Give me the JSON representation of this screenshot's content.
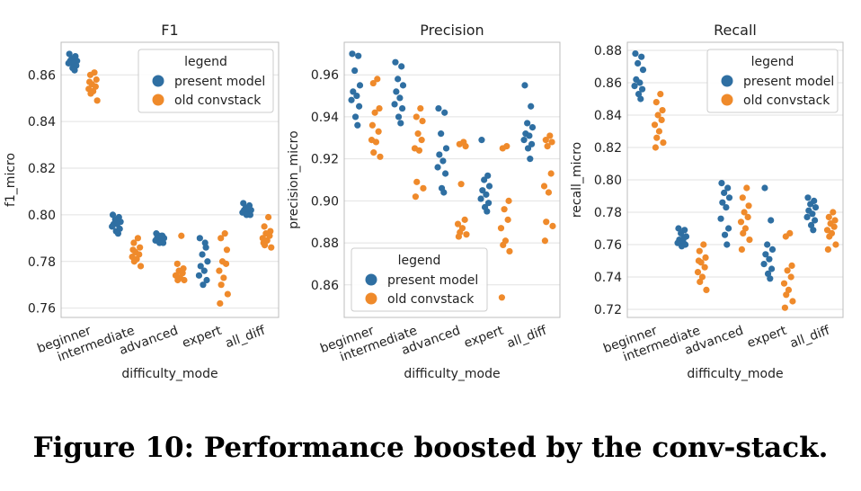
{
  "figure_caption": "Figure 10: Performance boosted by the conv-stack.",
  "colors": {
    "present": "#2f6fa2",
    "old": "#ef8a2b",
    "grid": "#e2e2e2",
    "axis": "#bcbcbc"
  },
  "chart_data": [
    {
      "type": "scatter",
      "title": "F1",
      "xlabel": "difficulty_mode",
      "ylabel": "f1_micro",
      "categories": [
        "beginner",
        "intermediate",
        "advanced",
        "expert",
        "all_diff"
      ],
      "ylim": [
        0.756,
        0.874
      ],
      "yticks": [
        0.76,
        0.78,
        0.8,
        0.82,
        0.84,
        0.86
      ],
      "ytick_labels": [
        "0.76",
        "0.78",
        "0.80",
        "0.82",
        "0.84",
        "0.86"
      ],
      "legend": {
        "title": "legend",
        "entries": [
          "present model",
          "old convstack"
        ],
        "placement": "top-right"
      },
      "series": [
        {
          "name": "present model",
          "color": "#2f6fa2",
          "values": [
            [
              0.869,
              0.868,
              0.867,
              0.866,
              0.866,
              0.865,
              0.865,
              0.864,
              0.863,
              0.862
            ],
            [
              0.8,
              0.799,
              0.798,
              0.797,
              0.796,
              0.796,
              0.795,
              0.794,
              0.793,
              0.792
            ],
            [
              0.792,
              0.791,
              0.791,
              0.79,
              0.79,
              0.789,
              0.789,
              0.788,
              0.788,
              0.791
            ],
            [
              0.79,
              0.786,
              0.783,
              0.78,
              0.778,
              0.776,
              0.774,
              0.772,
              0.77,
              0.788
            ],
            [
              0.805,
              0.804,
              0.803,
              0.802,
              0.802,
              0.801,
              0.801,
              0.8,
              0.8,
              0.803
            ]
          ]
        },
        {
          "name": "old convstack",
          "color": "#ef8a2b",
          "values": [
            [
              0.861,
              0.86,
              0.858,
              0.856,
              0.855,
              0.854,
              0.853,
              0.852,
              0.849,
              0.857
            ],
            [
              0.79,
              0.788,
              0.786,
              0.784,
              0.783,
              0.782,
              0.781,
              0.78,
              0.778,
              0.785
            ],
            [
              0.791,
              0.779,
              0.777,
              0.776,
              0.775,
              0.774,
              0.773,
              0.772,
              0.772,
              0.774
            ],
            [
              0.792,
              0.79,
              0.785,
              0.78,
              0.779,
              0.776,
              0.773,
              0.77,
              0.766,
              0.762
            ],
            [
              0.799,
              0.795,
              0.793,
              0.792,
              0.791,
              0.79,
              0.789,
              0.787,
              0.786,
              0.788
            ]
          ]
        }
      ]
    },
    {
      "type": "scatter",
      "title": "Precision",
      "xlabel": "difficulty_mode",
      "ylabel": "precision_micro",
      "categories": [
        "beginner",
        "intermediate",
        "advanced",
        "expert",
        "all_diff"
      ],
      "ylim": [
        0.8445,
        0.9755
      ],
      "yticks": [
        0.86,
        0.88,
        0.9,
        0.92,
        0.94,
        0.96
      ],
      "ytick_labels": [
        "0.86",
        "0.88",
        "0.90",
        "0.92",
        "0.94",
        "0.96"
      ],
      "legend": {
        "title": "legend",
        "entries": [
          "present model",
          "old convstack"
        ],
        "placement": "bottom-left"
      },
      "series": [
        {
          "name": "present model",
          "color": "#2f6fa2",
          "values": [
            [
              0.97,
              0.969,
              0.962,
              0.955,
              0.952,
              0.95,
              0.948,
              0.945,
              0.94,
              0.936
            ],
            [
              0.966,
              0.964,
              0.958,
              0.955,
              0.952,
              0.949,
              0.946,
              0.944,
              0.94,
              0.937
            ],
            [
              0.944,
              0.942,
              0.932,
              0.925,
              0.922,
              0.919,
              0.916,
              0.913,
              0.906,
              0.904
            ],
            [
              0.929,
              0.912,
              0.91,
              0.907,
              0.905,
              0.903,
              0.901,
              0.899,
              0.897,
              0.895
            ],
            [
              0.955,
              0.945,
              0.937,
              0.935,
              0.932,
              0.931,
              0.929,
              0.927,
              0.925,
              0.92
            ]
          ]
        },
        {
          "name": "old convstack",
          "color": "#ef8a2b",
          "values": [
            [
              0.958,
              0.956,
              0.944,
              0.942,
              0.933,
              0.929,
              0.928,
              0.923,
              0.921,
              0.936
            ],
            [
              0.944,
              0.94,
              0.938,
              0.932,
              0.929,
              0.925,
              0.924,
              0.909,
              0.906,
              0.902
            ],
            [
              0.928,
              0.927,
              0.926,
              0.908,
              0.891,
              0.889,
              0.887,
              0.885,
              0.884,
              0.883
            ],
            [
              0.926,
              0.925,
              0.9,
              0.896,
              0.891,
              0.887,
              0.881,
              0.879,
              0.876,
              0.854
            ],
            [
              0.931,
              0.929,
              0.928,
              0.926,
              0.913,
              0.907,
              0.904,
              0.89,
              0.888,
              0.881
            ]
          ]
        }
      ]
    },
    {
      "type": "scatter",
      "title": "Recall",
      "xlabel": "difficulty_mode",
      "ylabel": "recall_micro",
      "categories": [
        "beginner",
        "intermediate",
        "advanced",
        "expert",
        "all_diff"
      ],
      "ylim": [
        0.715,
        0.885
      ],
      "yticks": [
        0.72,
        0.74,
        0.76,
        0.78,
        0.8,
        0.82,
        0.84,
        0.86,
        0.88
      ],
      "ytick_labels": [
        "0.72",
        "0.74",
        "0.76",
        "0.78",
        "0.80",
        "0.82",
        "0.84",
        "0.86",
        "0.88"
      ],
      "legend": {
        "title": "legend",
        "entries": [
          "present model",
          "old convstack"
        ],
        "placement": "top-right"
      },
      "series": [
        {
          "name": "present model",
          "color": "#2f6fa2",
          "values": [
            [
              0.878,
              0.876,
              0.872,
              0.868,
              0.862,
              0.86,
              0.858,
              0.856,
              0.853,
              0.85
            ],
            [
              0.77,
              0.769,
              0.767,
              0.765,
              0.763,
              0.762,
              0.761,
              0.76,
              0.759,
              0.764
            ],
            [
              0.798,
              0.795,
              0.792,
              0.789,
              0.786,
              0.783,
              0.776,
              0.77,
              0.766,
              0.76
            ],
            [
              0.795,
              0.775,
              0.76,
              0.757,
              0.754,
              0.751,
              0.748,
              0.745,
              0.742,
              0.739
            ],
            [
              0.789,
              0.787,
              0.785,
              0.783,
              0.781,
              0.779,
              0.777,
              0.775,
              0.772,
              0.769
            ]
          ]
        },
        {
          "name": "old convstack",
          "color": "#ef8a2b",
          "values": [
            [
              0.853,
              0.848,
              0.843,
              0.84,
              0.837,
              0.834,
              0.83,
              0.826,
              0.823,
              0.82
            ],
            [
              0.76,
              0.756,
              0.752,
              0.749,
              0.746,
              0.743,
              0.74,
              0.737,
              0.732,
              0.75
            ],
            [
              0.795,
              0.789,
              0.784,
              0.78,
              0.777,
              0.774,
              0.77,
              0.767,
              0.763,
              0.757
            ],
            [
              0.767,
              0.765,
              0.747,
              0.744,
              0.74,
              0.736,
              0.732,
              0.729,
              0.725,
              0.721
            ],
            [
              0.78,
              0.777,
              0.775,
              0.773,
              0.771,
              0.769,
              0.767,
              0.765,
              0.76,
              0.757
            ]
          ]
        }
      ]
    }
  ]
}
